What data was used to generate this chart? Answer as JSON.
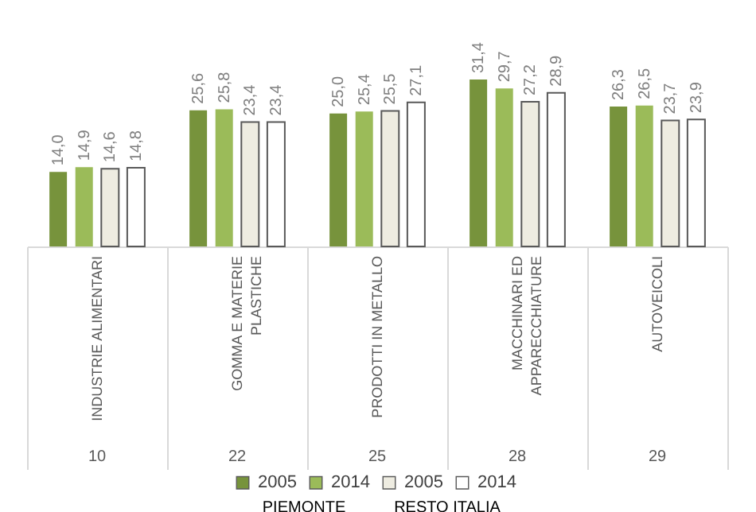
{
  "chart_data": {
    "type": "bar",
    "categories": [
      "INDUSTRIE ALIMENTARI",
      "GOMMA E MATERIE\nPLASTICHE",
      "PRODOTTI IN METALLO",
      "MACCHINARI ED\nAPPARECCHIATURE",
      "AUTOVEICOLI"
    ],
    "series": [
      {
        "name": "2005",
        "color": "#77933c",
        "values": [
          14.0,
          25.6,
          25.0,
          31.4,
          26.3
        ],
        "value_labels": [
          "14,0",
          "25,6",
          "25,0",
          "31,4",
          "26,3"
        ]
      },
      {
        "name": "2014",
        "color": "#9bbb59",
        "values": [
          14.9,
          25.8,
          25.4,
          29.7,
          26.5
        ],
        "value_labels": [
          "14,9",
          "25,8",
          "25,4",
          "29,7",
          "26,5"
        ]
      },
      {
        "name": "2005",
        "color": "#eeece1",
        "values": [
          14.6,
          23.4,
          25.5,
          27.2,
          23.7
        ],
        "value_labels": [
          "14,6",
          "23,4",
          "25,5",
          "27,2",
          "23,7"
        ]
      },
      {
        "name": "2014",
        "color": "#ffffff",
        "values": [
          14.8,
          23.4,
          27.1,
          28.9,
          23.9
        ],
        "value_labels": [
          "14,8",
          "23,4",
          "27,1",
          "28,9",
          "23,9"
        ]
      }
    ],
    "legend": "bottom",
    "annotations": [
      "10",
      "22",
      "25",
      "28",
      "29",
      "PIEMONTE",
      "RESTO ITALIA"
    ]
  }
}
